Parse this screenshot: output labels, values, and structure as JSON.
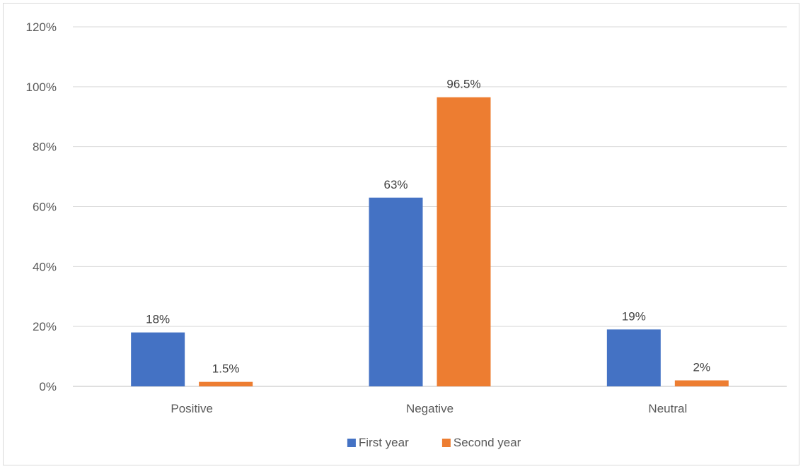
{
  "chart_data": {
    "type": "bar",
    "categories": [
      "Positive",
      "Negative",
      "Neutral"
    ],
    "series": [
      {
        "name": "First year",
        "values": [
          18,
          63,
          19
        ],
        "labels": [
          "18%",
          "63%",
          "19%"
        ],
        "color": "#4472C4"
      },
      {
        "name": "Second year",
        "values": [
          1.5,
          96.5,
          2
        ],
        "labels": [
          "1.5%",
          "96.5%",
          "2%"
        ],
        "color": "#ED7D31"
      }
    ],
    "ylim": [
      0,
      120
    ],
    "yticks": [
      0,
      20,
      40,
      60,
      80,
      100,
      120
    ],
    "ytick_labels": [
      "0%",
      "20%",
      "40%",
      "60%",
      "80%",
      "100%",
      "120%"
    ],
    "grid": true,
    "legend_position": "bottom",
    "title": "",
    "xlabel": "",
    "ylabel": ""
  }
}
